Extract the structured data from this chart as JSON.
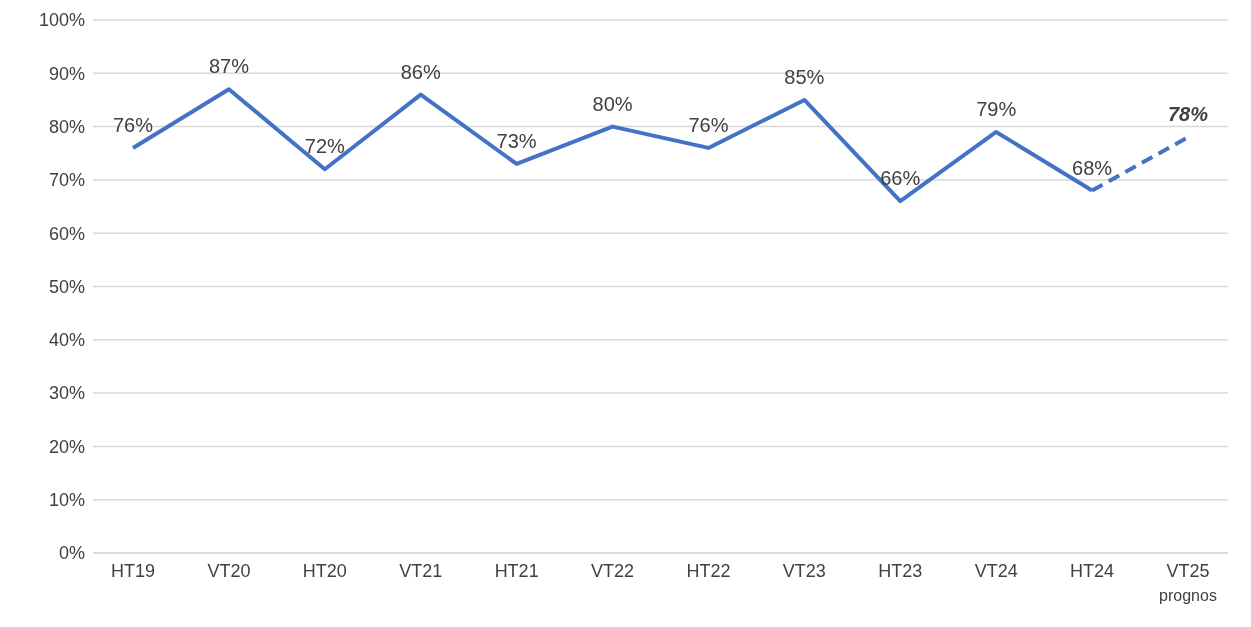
{
  "chart_data": {
    "type": "line",
    "categories": [
      "HT19",
      "VT20",
      "HT20",
      "VT21",
      "HT21",
      "VT22",
      "HT22",
      "VT23",
      "HT23",
      "VT24",
      "HT24",
      "VT25\nprognos"
    ],
    "series": [
      {
        "color": "#4472c4",
        "line_style": "solid",
        "values": [
          76,
          87,
          72,
          86,
          73,
          80,
          76,
          85,
          66,
          79,
          68,
          null
        ],
        "value_labels": [
          "76%",
          "87%",
          "72%",
          "86%",
          "73%",
          "80%",
          "76%",
          "85%",
          "66%",
          "79%",
          "68%",
          null
        ]
      },
      {
        "color": "#4472c4",
        "line_style": "dashed",
        "values": [
          null,
          null,
          null,
          null,
          null,
          null,
          null,
          null,
          null,
          null,
          68,
          78
        ],
        "value_labels": [
          null,
          null,
          null,
          null,
          null,
          null,
          null,
          null,
          null,
          null,
          null,
          "78%"
        ]
      }
    ],
    "ylim": [
      0,
      100
    ],
    "yticks": [
      {
        "value": 0,
        "label": "0%"
      },
      {
        "value": 10,
        "label": "10%"
      },
      {
        "value": 20,
        "label": "20%"
      },
      {
        "value": 30,
        "label": "30%"
      },
      {
        "value": 40,
        "label": "40%"
      },
      {
        "value": 50,
        "label": "50%"
      },
      {
        "value": 60,
        "label": "60%"
      },
      {
        "value": 70,
        "label": "70%"
      },
      {
        "value": 80,
        "label": "80%"
      },
      {
        "value": 90,
        "label": "90%"
      },
      {
        "value": 100,
        "label": "100%"
      }
    ],
    "grid": "y",
    "marker": "none",
    "legend": false
  }
}
